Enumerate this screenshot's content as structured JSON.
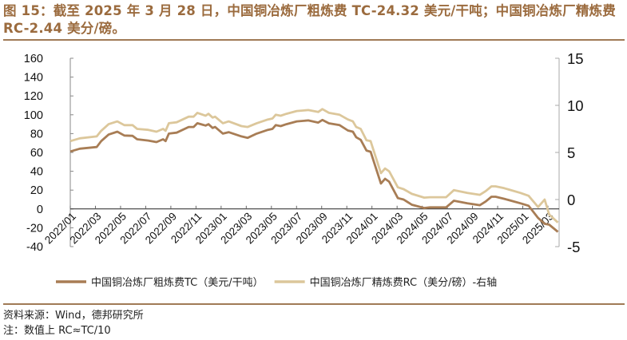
{
  "title": "图 15：截至 2025 年 3 月 28 日，中国铜冶炼厂粗炼费 TC-24.32 美元/干吨；中国铜冶炼厂精炼费 RC-2.44 美分/磅。",
  "footer": {
    "source": "资料来源：Wind，德邦研究所",
    "note": "注：数值上 RC≈TC/10"
  },
  "chart_data": {
    "type": "line",
    "title": "",
    "xlabel": "",
    "ylabel": "",
    "grid": false,
    "legend_placement": "bottom",
    "y_left": {
      "lim": [
        -40,
        160
      ],
      "ticks": [
        160,
        140,
        120,
        100,
        80,
        60,
        40,
        20,
        0,
        -20,
        -40
      ]
    },
    "y_right": {
      "lim": [
        -5,
        15
      ],
      "ticks": [
        15,
        10,
        5,
        0,
        -5
      ]
    },
    "x_ticks": [
      "2022/01",
      "2022/03",
      "2022/05",
      "2022/07",
      "2022/09",
      "2022/11",
      "2023/01",
      "2023/03",
      "2023/05",
      "2023/07",
      "2023/09",
      "2023/11",
      "2024/01",
      "2024/03",
      "2024/05",
      "2024/07",
      "2024/09",
      "2024/11",
      "2025/01",
      "2025/03"
    ],
    "x_range": [
      "2022-01-01",
      "2025-03-28"
    ],
    "dates": [
      "2022-01-01",
      "2022-01-24",
      "2022-03-06",
      "2022-03-17",
      "2022-04-04",
      "2022-04-25",
      "2022-05-12",
      "2022-06-01",
      "2022-06-12",
      "2022-07-09",
      "2022-07-29",
      "2022-08-14",
      "2022-08-20",
      "2022-08-28",
      "2022-09-16",
      "2022-10-15",
      "2022-10-27",
      "2022-11-05",
      "2022-11-25",
      "2022-12-02",
      "2022-12-12",
      "2022-12-18",
      "2023-01-06",
      "2023-01-20",
      "2023-02-20",
      "2023-03-07",
      "2023-03-29",
      "2023-04-25",
      "2023-05-06",
      "2023-05-14",
      "2023-05-26",
      "2023-06-09",
      "2023-07-04",
      "2023-08-01",
      "2023-08-25",
      "2023-09-04",
      "2023-09-20",
      "2023-10-16",
      "2023-11-05",
      "2023-11-17",
      "2023-11-25",
      "2023-12-06",
      "2023-12-20",
      "2023-12-30",
      "2024-01-24",
      "2024-02-03",
      "2024-02-13",
      "2024-03-05",
      "2024-03-19",
      "2024-04-08",
      "2024-05-08",
      "2024-05-22",
      "2024-06-30",
      "2024-07-19",
      "2024-08-21",
      "2024-09-20",
      "2024-10-04",
      "2024-10-18",
      "2024-10-28",
      "2024-11-18",
      "2024-12-27",
      "2025-01-16",
      "2025-02-08",
      "2025-02-24",
      "2025-03-07",
      "2025-03-28"
    ],
    "series": [
      {
        "name": "中国铜冶炼厂粗炼费TC（美元/干吨）",
        "axis": "left",
        "color": "#a87d55",
        "values": [
          61,
          64,
          65.8,
          72,
          79,
          82,
          78,
          77.6,
          74,
          72.6,
          71,
          74,
          72,
          80,
          81,
          87,
          87,
          91,
          88.6,
          90,
          86,
          87,
          80,
          81.5,
          77,
          75.5,
          80,
          84,
          85,
          89,
          88,
          90,
          93,
          94,
          91.7,
          94.5,
          90.9,
          89,
          83.3,
          82,
          76.2,
          73.4,
          62,
          60.8,
          27,
          32,
          29,
          11.5,
          10,
          4.5,
          1,
          1.7,
          1.7,
          8.7,
          6,
          4,
          8,
          13,
          13,
          10.8,
          6,
          3.4,
          -9.6,
          -15.8,
          -16.7,
          -24.32
        ]
      },
      {
        "name": "中国铜冶炼厂精炼费RC（美分/磅）-右轴",
        "axis": "right",
        "color": "#dcc79b",
        "values": [
          6.2,
          6.5,
          6.7,
          7.3,
          8.0,
          8.3,
          7.9,
          7.9,
          7.5,
          7.4,
          7.2,
          7.5,
          7.3,
          8.1,
          8.2,
          8.8,
          8.8,
          9.2,
          8.9,
          9.1,
          8.7,
          8.8,
          8.1,
          8.3,
          7.8,
          7.7,
          8.1,
          8.5,
          8.6,
          9.0,
          8.9,
          9.1,
          9.4,
          9.5,
          9.3,
          9.6,
          9.2,
          9.0,
          8.5,
          8.3,
          7.7,
          7.5,
          6.3,
          6.2,
          2.8,
          3.3,
          3.0,
          1.3,
          1.1,
          0.6,
          0.2,
          0.25,
          0.25,
          1.0,
          0.7,
          0.5,
          0.9,
          1.4,
          1.4,
          1.2,
          0.7,
          0.4,
          -0.8,
          0.0,
          -1.6,
          -2.44
        ]
      }
    ]
  }
}
